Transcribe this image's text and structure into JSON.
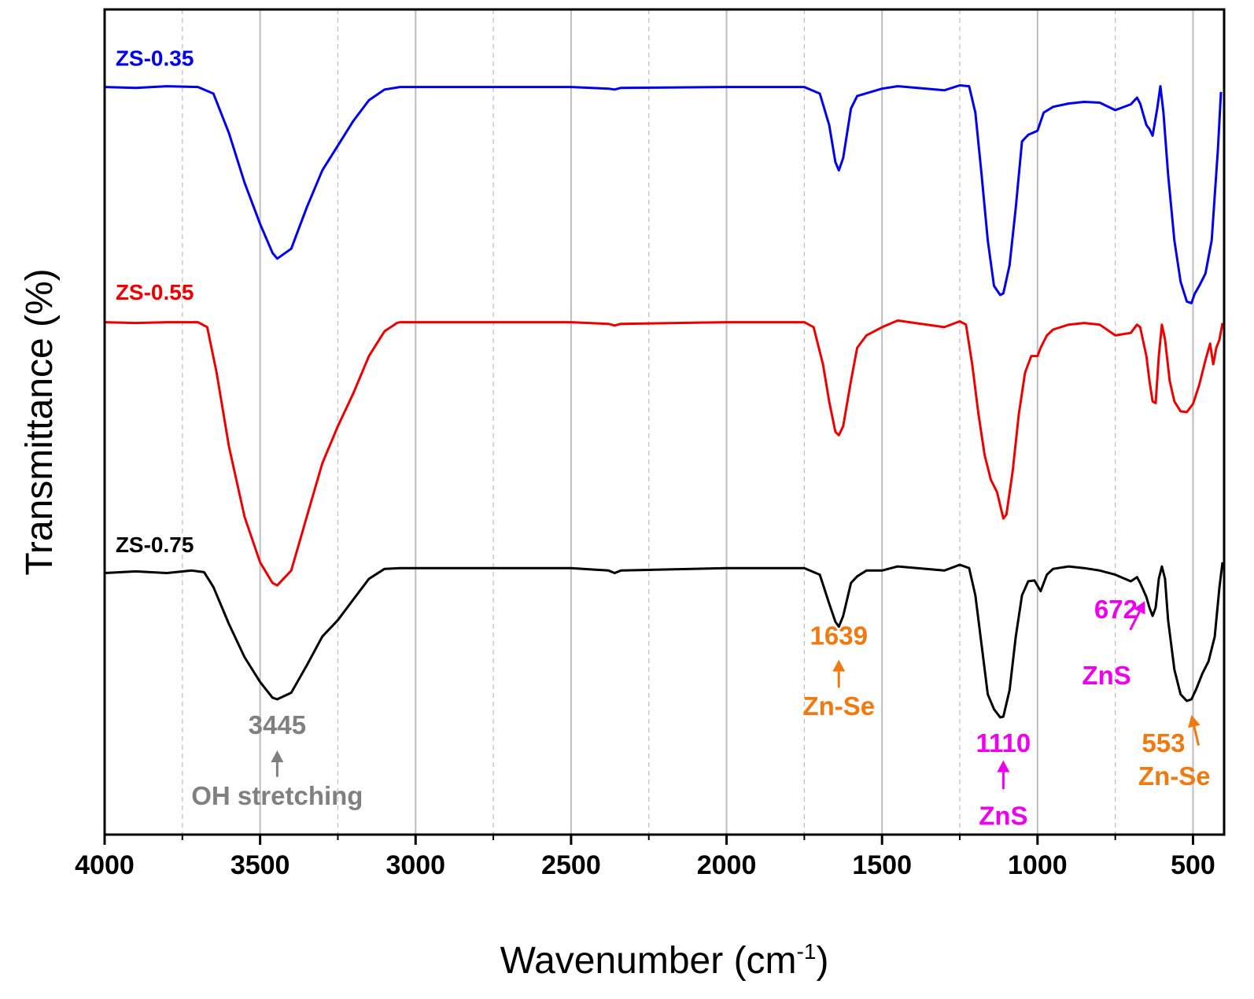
{
  "chart_data": {
    "type": "line",
    "xlabel": "Wavenumber (cm",
    "xlabel_sup": "-1",
    "xlabel_close": ")",
    "ylabel": "Transmittance (%)",
    "xlim": [
      4000,
      400
    ],
    "x_reversed": true,
    "ylim": [
      0,
      100
    ],
    "y_ticks_shown": false,
    "x_ticks": [
      4000,
      3500,
      3000,
      2500,
      2000,
      1500,
      1000,
      500
    ],
    "x_tick_labels": [
      "4000",
      "3500",
      "3000",
      "2500",
      "2000",
      "1500",
      "1000",
      "500"
    ],
    "major_grid_x": [
      3500,
      3000,
      2500,
      2000,
      1500,
      1000,
      500
    ],
    "minor_grid_x": [
      3750,
      3250,
      2750,
      2250,
      1750,
      1250,
      750
    ],
    "series": [
      {
        "name": "ZS-0.35",
        "color": "#0000ee",
        "points": [
          [
            4000,
            90.6
          ],
          [
            3900,
            90.5
          ],
          [
            3800,
            90.7
          ],
          [
            3700,
            90.6
          ],
          [
            3650,
            89.8
          ],
          [
            3600,
            85
          ],
          [
            3550,
            79
          ],
          [
            3500,
            74
          ],
          [
            3460,
            70.5
          ],
          [
            3445,
            69.8
          ],
          [
            3400,
            71
          ],
          [
            3350,
            76
          ],
          [
            3300,
            80.5
          ],
          [
            3250,
            83.5
          ],
          [
            3200,
            86.5
          ],
          [
            3150,
            89
          ],
          [
            3100,
            90.3
          ],
          [
            3050,
            90.6
          ],
          [
            2500,
            90.6
          ],
          [
            2380,
            90.4
          ],
          [
            2360,
            90.3
          ],
          [
            2340,
            90.5
          ],
          [
            2000,
            90.6
          ],
          [
            1750,
            90.6
          ],
          [
            1700,
            89.8
          ],
          [
            1670,
            86
          ],
          [
            1650,
            81.5
          ],
          [
            1639,
            80.5
          ],
          [
            1625,
            82
          ],
          [
            1600,
            88
          ],
          [
            1580,
            89.5
          ],
          [
            1500,
            90.4
          ],
          [
            1450,
            90.7
          ],
          [
            1300,
            90.2
          ],
          [
            1250,
            90.8
          ],
          [
            1220,
            90.7
          ],
          [
            1200,
            87.5
          ],
          [
            1180,
            80
          ],
          [
            1160,
            72
          ],
          [
            1140,
            66.5
          ],
          [
            1120,
            65.4
          ],
          [
            1110,
            65.6
          ],
          [
            1090,
            69
          ],
          [
            1070,
            76
          ],
          [
            1050,
            84
          ],
          [
            1030,
            84.8
          ],
          [
            1000,
            85.3
          ],
          [
            980,
            87.5
          ],
          [
            950,
            88.2
          ],
          [
            900,
            88.6
          ],
          [
            850,
            88.8
          ],
          [
            800,
            88.7
          ],
          [
            750,
            87.8
          ],
          [
            700,
            88.5
          ],
          [
            680,
            89.3
          ],
          [
            670,
            88.6
          ],
          [
            650,
            86
          ],
          [
            640,
            85.5
          ],
          [
            630,
            84.7
          ],
          [
            615,
            88
          ],
          [
            605,
            90.7
          ],
          [
            595,
            87.5
          ],
          [
            580,
            80
          ],
          [
            560,
            72
          ],
          [
            540,
            67
          ],
          [
            520,
            64.6
          ],
          [
            505,
            64.4
          ],
          [
            495,
            65.5
          ],
          [
            480,
            66.5
          ],
          [
            460,
            68
          ],
          [
            440,
            72
          ],
          [
            420,
            83
          ],
          [
            410,
            90
          ]
        ]
      },
      {
        "name": "ZS-0.55",
        "color": "#ee0000",
        "points": [
          [
            4000,
            62.1
          ],
          [
            3900,
            62
          ],
          [
            3800,
            62.1
          ],
          [
            3700,
            62.1
          ],
          [
            3670,
            61.5
          ],
          [
            3640,
            56
          ],
          [
            3600,
            47
          ],
          [
            3550,
            38.5
          ],
          [
            3500,
            33
          ],
          [
            3460,
            30.5
          ],
          [
            3445,
            30.2
          ],
          [
            3400,
            32
          ],
          [
            3350,
            38.5
          ],
          [
            3300,
            45
          ],
          [
            3250,
            49.5
          ],
          [
            3200,
            53.5
          ],
          [
            3150,
            58
          ],
          [
            3100,
            61
          ],
          [
            3060,
            62
          ],
          [
            3050,
            62.1
          ],
          [
            2500,
            62.1
          ],
          [
            2380,
            61.9
          ],
          [
            2360,
            61.7
          ],
          [
            2340,
            61.9
          ],
          [
            2000,
            62.1
          ],
          [
            1750,
            62.1
          ],
          [
            1720,
            61.5
          ],
          [
            1690,
            57
          ],
          [
            1670,
            52.5
          ],
          [
            1650,
            48.8
          ],
          [
            1639,
            48.4
          ],
          [
            1625,
            49.5
          ],
          [
            1600,
            55
          ],
          [
            1580,
            59
          ],
          [
            1550,
            60.5
          ],
          [
            1500,
            61.5
          ],
          [
            1450,
            62.3
          ],
          [
            1300,
            61.5
          ],
          [
            1250,
            62.2
          ],
          [
            1230,
            61.8
          ],
          [
            1210,
            57
          ],
          [
            1190,
            51
          ],
          [
            1170,
            46
          ],
          [
            1150,
            43
          ],
          [
            1130,
            41.5
          ],
          [
            1110,
            38.3
          ],
          [
            1100,
            38.8
          ],
          [
            1080,
            44
          ],
          [
            1060,
            51
          ],
          [
            1040,
            56
          ],
          [
            1020,
            58
          ],
          [
            1000,
            58
          ],
          [
            990,
            59
          ],
          [
            970,
            60.5
          ],
          [
            950,
            61.2
          ],
          [
            900,
            61.8
          ],
          [
            850,
            62
          ],
          [
            800,
            61.8
          ],
          [
            750,
            60.5
          ],
          [
            700,
            60.8
          ],
          [
            680,
            61.8
          ],
          [
            670,
            61.5
          ],
          [
            650,
            58
          ],
          [
            640,
            55
          ],
          [
            630,
            52.5
          ],
          [
            620,
            52.3
          ],
          [
            610,
            58
          ],
          [
            600,
            61.8
          ],
          [
            590,
            60
          ],
          [
            575,
            55
          ],
          [
            560,
            52.5
          ],
          [
            540,
            51.3
          ],
          [
            520,
            51.2
          ],
          [
            500,
            52.2
          ],
          [
            480,
            54.5
          ],
          [
            460,
            57.5
          ],
          [
            445,
            59.5
          ],
          [
            435,
            57
          ],
          [
            425,
            59
          ],
          [
            415,
            60
          ],
          [
            405,
            62
          ]
        ]
      },
      {
        "name": "ZS-0.75",
        "color": "#000000",
        "points": [
          [
            4000,
            31.7
          ],
          [
            3900,
            31.9
          ],
          [
            3800,
            31.7
          ],
          [
            3720,
            32
          ],
          [
            3680,
            31.8
          ],
          [
            3650,
            30
          ],
          [
            3600,
            25.5
          ],
          [
            3550,
            21.5
          ],
          [
            3500,
            18.5
          ],
          [
            3460,
            16.6
          ],
          [
            3445,
            16.4
          ],
          [
            3400,
            17.2
          ],
          [
            3350,
            20.5
          ],
          [
            3300,
            24
          ],
          [
            3250,
            26
          ],
          [
            3200,
            28.5
          ],
          [
            3150,
            31
          ],
          [
            3100,
            32.2
          ],
          [
            3050,
            32.3
          ],
          [
            2500,
            32.3
          ],
          [
            2380,
            32
          ],
          [
            2360,
            31.7
          ],
          [
            2340,
            32
          ],
          [
            2000,
            32.3
          ],
          [
            1750,
            32.3
          ],
          [
            1700,
            31.5
          ],
          [
            1670,
            28
          ],
          [
            1650,
            25.8
          ],
          [
            1639,
            25.2
          ],
          [
            1625,
            26.5
          ],
          [
            1600,
            30.5
          ],
          [
            1580,
            31.3
          ],
          [
            1550,
            32
          ],
          [
            1500,
            32
          ],
          [
            1450,
            32.5
          ],
          [
            1300,
            32
          ],
          [
            1250,
            32.7
          ],
          [
            1220,
            32.3
          ],
          [
            1200,
            29
          ],
          [
            1180,
            23
          ],
          [
            1160,
            17
          ],
          [
            1140,
            15.2
          ],
          [
            1120,
            14.2
          ],
          [
            1110,
            14.3
          ],
          [
            1090,
            17.5
          ],
          [
            1070,
            24
          ],
          [
            1050,
            29
          ],
          [
            1030,
            30.7
          ],
          [
            1010,
            30.8
          ],
          [
            990,
            29.5
          ],
          [
            970,
            31.5
          ],
          [
            950,
            32.2
          ],
          [
            900,
            32.5
          ],
          [
            850,
            32.3
          ],
          [
            800,
            32
          ],
          [
            750,
            31.5
          ],
          [
            700,
            30.7
          ],
          [
            680,
            31.2
          ],
          [
            670,
            30.5
          ],
          [
            650,
            28.8
          ],
          [
            640,
            27.5
          ],
          [
            630,
            26.5
          ],
          [
            620,
            27.5
          ],
          [
            610,
            31
          ],
          [
            600,
            32.5
          ],
          [
            590,
            31
          ],
          [
            580,
            26
          ],
          [
            560,
            20
          ],
          [
            540,
            17
          ],
          [
            520,
            16.2
          ],
          [
            505,
            16.4
          ],
          [
            490,
            17.6
          ],
          [
            470,
            19.5
          ],
          [
            450,
            21
          ],
          [
            430,
            24
          ],
          [
            415,
            30
          ],
          [
            405,
            33
          ]
        ]
      }
    ],
    "series_labels": [
      {
        "text": "ZS-0.35",
        "color": "#0000ee",
        "x": 3965,
        "y": 93.2
      },
      {
        "text": "ZS-0.55",
        "color": "#ee0000",
        "x": 3965,
        "y": 64.8
      },
      {
        "text": "ZS-0.75",
        "color": "#000000",
        "x": 3965,
        "y": 34.2
      }
    ],
    "annotations": [
      {
        "value": "3445",
        "desc": "OH stretching",
        "color": "#808080",
        "x": 3445,
        "value_y": 12.2,
        "desc_y": 3.6,
        "arrow": "up",
        "arrow_from_y": 7.0,
        "arrow_to_y": 10.2
      },
      {
        "value": "1639",
        "desc": "Zn-Se",
        "color": "#f07a10",
        "x": 1639,
        "value_y": 23.0,
        "desc_y": 14.5,
        "arrow": "up",
        "arrow_from_y": 17.8,
        "arrow_to_y": 21.2
      },
      {
        "value": "1110",
        "desc": "ZnS",
        "color": "#ee00ee",
        "x": 1110,
        "value_y": 10.0,
        "desc_y": 1.2,
        "arrow": "up",
        "arrow_from_y": 5.5,
        "arrow_to_y": 9.0
      },
      {
        "value": "553",
        "desc": "Zn-Se",
        "color": "#f07a10",
        "x": 553,
        "value_y": 10.0,
        "desc_y": 6.0,
        "arrow": "diag",
        "arrow_tail": [
          482,
          10.8
        ],
        "arrow_head": [
          505,
          14.5
        ],
        "label_x": 595,
        "desc_x": 560
      },
      {
        "value": "672",
        "desc": "ZnS",
        "color": "#ee00ee",
        "x": 672,
        "value_y": 26.2,
        "desc_y": 18.2,
        "arrow": "diag",
        "arrow_tail": [
          702,
          24.8
        ],
        "arrow_head": [
          655,
          28.3
        ],
        "label_x": 748,
        "desc_x": 778
      }
    ]
  }
}
